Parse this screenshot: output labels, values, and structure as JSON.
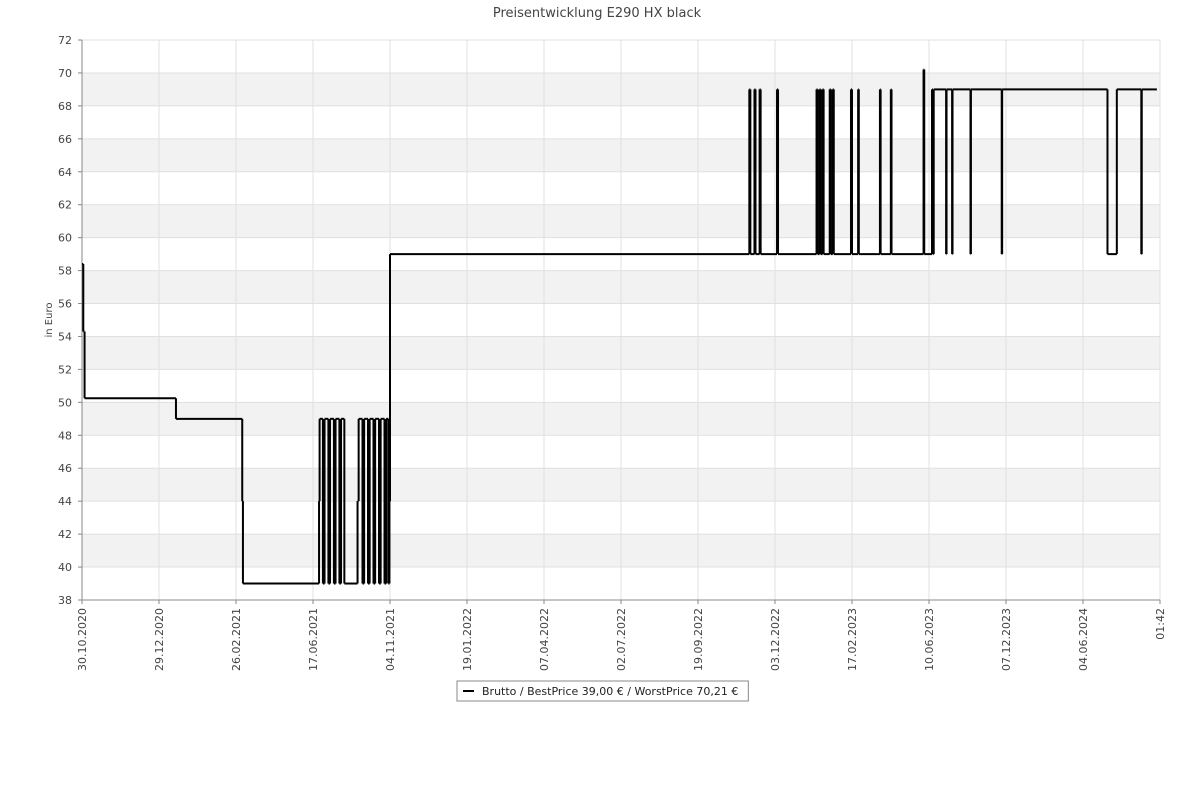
{
  "chart_data": {
    "type": "step",
    "title": "Preisentwicklung E290 HX black",
    "y_label": "in Euro",
    "xlim": [
      "2020-10-30",
      "2024-11-24"
    ],
    "xticks": [
      {
        "value": "2020-10-30",
        "label": "30.10.2020"
      },
      {
        "value": "2020-12-29",
        "label": "29.12.2020"
      },
      {
        "value": "2021-02-26",
        "label": "26.02.2021"
      },
      {
        "value": "2021-06-17",
        "label": "17.06.2021"
      },
      {
        "value": "2021-11-04",
        "label": "04.11.2021"
      },
      {
        "value": "2022-01-19",
        "label": "19.01.2022"
      },
      {
        "value": "2022-04-07",
        "label": "07.04.2022"
      },
      {
        "value": "2022-07-02",
        "label": "02.07.2022"
      },
      {
        "value": "2022-09-19",
        "label": "19.09.2022"
      },
      {
        "value": "2022-12-03",
        "label": "03.12.2022"
      },
      {
        "value": "2023-02-17",
        "label": "17.02.2023"
      },
      {
        "value": "2023-06-10",
        "label": "10.06.2023"
      },
      {
        "value": "2023-12-07",
        "label": "07.12.2023"
      },
      {
        "value": "2024-06-04",
        "label": "04.06.2024"
      },
      {
        "value": "2024-11-24",
        "label": "01:42"
      }
    ],
    "ylim": [
      38,
      72
    ],
    "yticks": [
      38,
      40,
      42,
      44,
      46,
      48,
      50,
      52,
      54,
      56,
      58,
      60,
      62,
      64,
      66,
      68,
      70,
      72
    ],
    "grid": true,
    "legend": "bottom",
    "series": [
      {
        "name": "Brutto / BestPrice  39,00 € / WorstPrice  70,21 €",
        "color": "#000000",
        "x": [
          "2020-10-30",
          "2020-10-31",
          "2020-11-01",
          "2021-01-11",
          "2021-03-07",
          "2021-03-08",
          "2021-06-28",
          "2021-06-29",
          "2021-07-05",
          "2021-07-08",
          "2021-07-15",
          "2021-07-18",
          "2021-07-25",
          "2021-07-28",
          "2021-08-04",
          "2021-08-07",
          "2021-08-13",
          "2021-09-06",
          "2021-09-08",
          "2021-09-15",
          "2021-09-18",
          "2021-09-25",
          "2021-09-28",
          "2021-10-05",
          "2021-10-08",
          "2021-10-15",
          "2021-10-18",
          "2021-10-25",
          "2021-10-28",
          "2021-11-01",
          "2021-11-03",
          "2021-11-04",
          "2022-11-08",
          "2022-11-09",
          "2022-11-13",
          "2022-11-14",
          "2022-11-18",
          "2022-11-19",
          "2022-12-05",
          "2022-12-06",
          "2023-01-13",
          "2023-01-14",
          "2023-01-16",
          "2023-01-17",
          "2023-01-19",
          "2023-01-20",
          "2023-01-26",
          "2023-01-27",
          "2023-01-29",
          "2023-01-30",
          "2023-02-16",
          "2023-02-17",
          "2023-02-26",
          "2023-02-27",
          "2023-03-30",
          "2023-03-31",
          "2023-04-15",
          "2023-04-16",
          "2023-06-02",
          "2023-06-03",
          "2023-06-17",
          "2023-06-19",
          "2023-06-21",
          "2023-07-20",
          "2023-07-21",
          "2023-08-03",
          "2023-08-04",
          "2023-09-15",
          "2023-09-16",
          "2023-11-27",
          "2023-11-28",
          "2024-07-29",
          "2024-08-19",
          "2024-10-13",
          "2024-10-14",
          "2024-11-17"
        ],
        "values": [
          58.4,
          54.3,
          50.25,
          49,
          44,
          39,
          44,
          49,
          39,
          49,
          39,
          49,
          39,
          49,
          39,
          49,
          39,
          44,
          49,
          39,
          49,
          39,
          49,
          39,
          49,
          39,
          49,
          39,
          49,
          39,
          44,
          59,
          69,
          59,
          69,
          59,
          69,
          59,
          69,
          59,
          69,
          59,
          69,
          59,
          69,
          59,
          69,
          59,
          69,
          59,
          69,
          59,
          69,
          59,
          69,
          59,
          69,
          59,
          70.21,
          59,
          69,
          59,
          69,
          59,
          69,
          59,
          69,
          59,
          69,
          59,
          69,
          59,
          69,
          59,
          69,
          69
        ]
      }
    ]
  }
}
